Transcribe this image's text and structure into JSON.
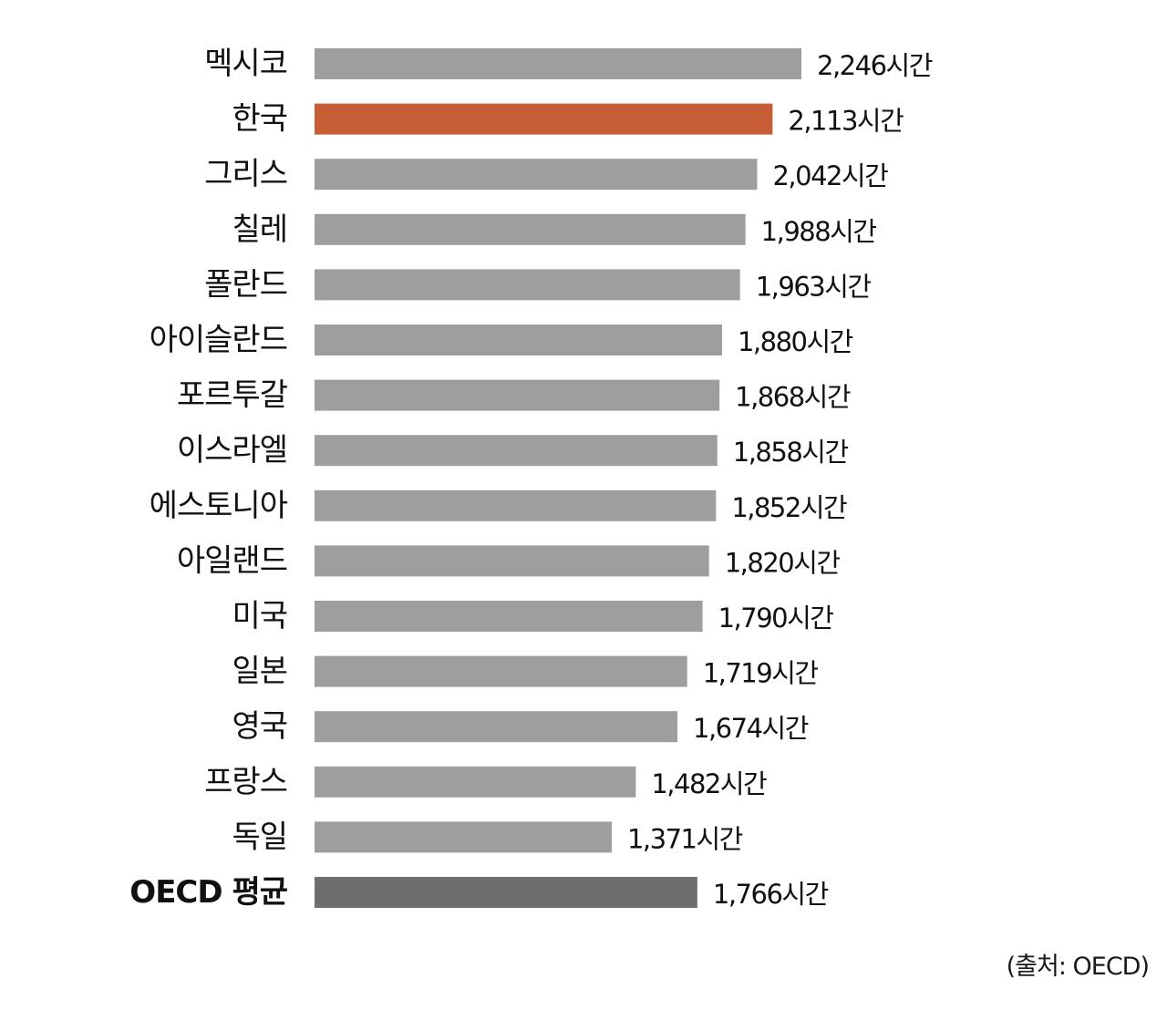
{
  "chart_data": {
    "type": "bar",
    "orientation": "horizontal",
    "categories": [
      "멕시코",
      "한국",
      "그리스",
      "칠레",
      "폴란드",
      "아이슬란드",
      "포르투갈",
      "이스라엘",
      "에스토니아",
      "아일랜드",
      "미국",
      "일본",
      "영국",
      "프랑스",
      "독일",
      "OECD 평균"
    ],
    "values": [
      2246,
      2113,
      2042,
      1988,
      1963,
      1880,
      1868,
      1858,
      1852,
      1820,
      1790,
      1719,
      1674,
      1482,
      1371,
      1766
    ],
    "value_labels": [
      "2,246시간",
      "2,113시간",
      "2,042시간",
      "1,988시간",
      "1,963시간",
      "1,880시간",
      "1,868시간",
      "1,858시간",
      "1,852시간",
      "1,820시간",
      "1,790시간",
      "1,719시간",
      "1,674시간",
      "1,482시간",
      "1,371시간",
      "1,766시간"
    ],
    "highlight": {
      "category": "한국",
      "color": "#c65d35"
    },
    "average": {
      "category": "OECD 평균",
      "color": "#6e6e6e"
    },
    "bar_color": "#9e9e9e",
    "xlim": [
      0,
      2246
    ],
    "grid": false,
    "legend": "none",
    "title": "",
    "xlabel": "",
    "ylabel": ""
  },
  "source_text": "(출처: OECD)"
}
